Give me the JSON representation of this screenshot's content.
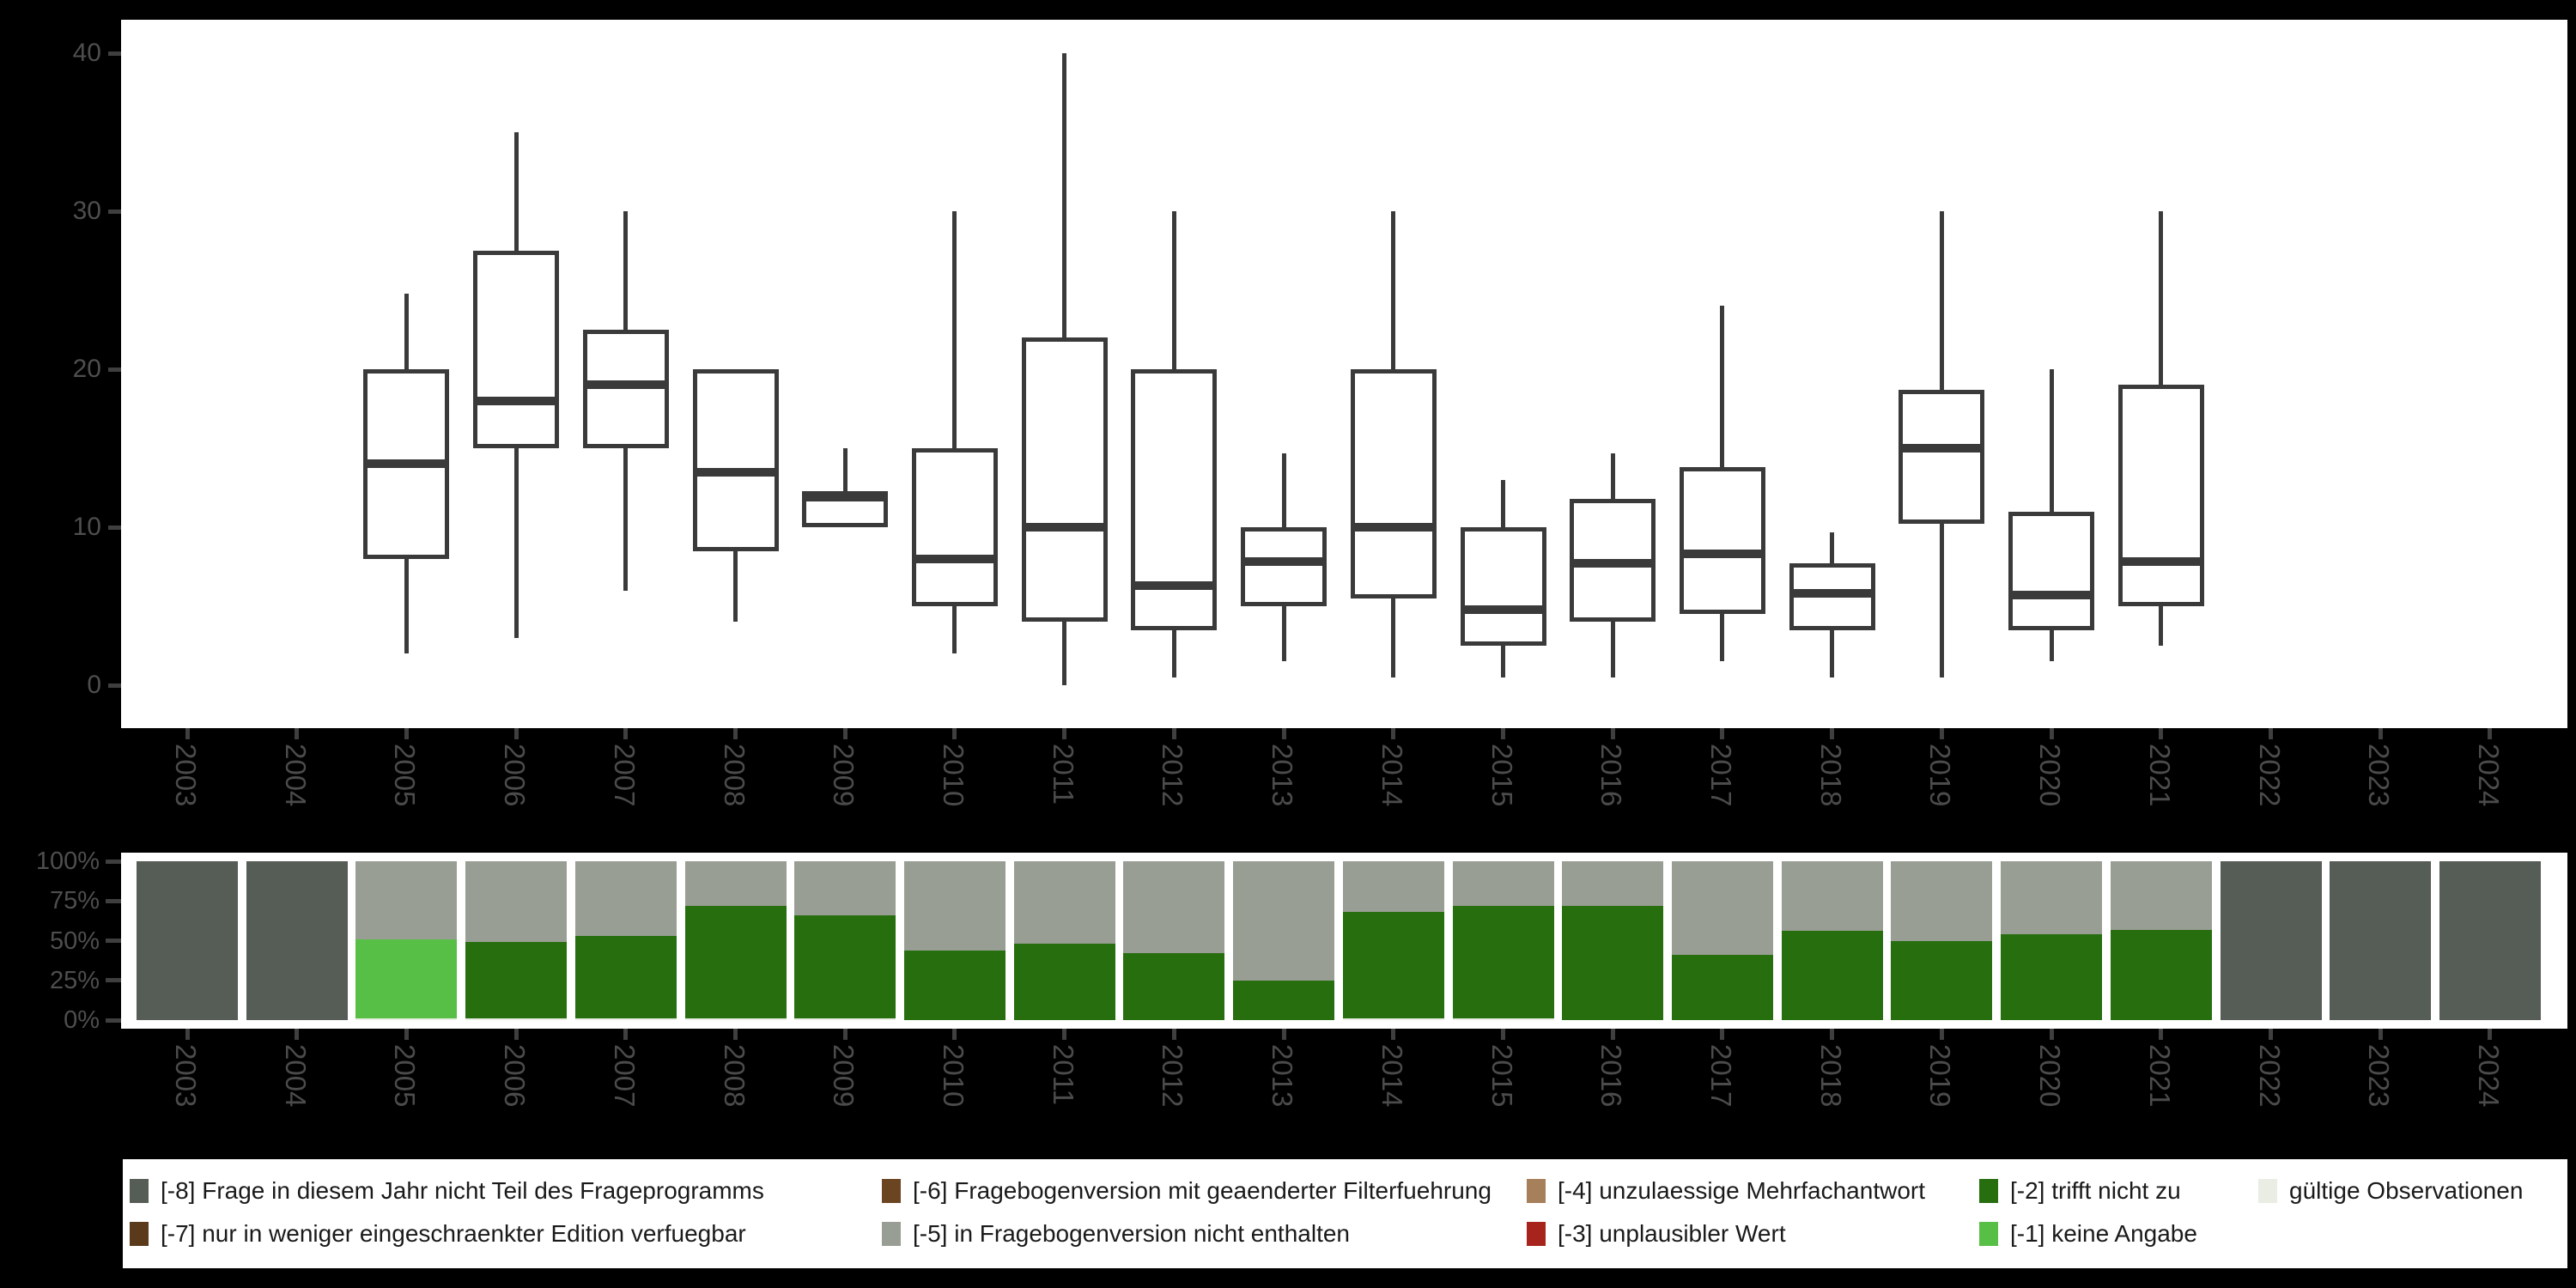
{
  "colors": {
    "background": "#000000",
    "panel": "#ffffff",
    "box_stroke": "#3a3a3a",
    "axis_text": "#4e4e4e",
    "year_text": "#4b4b4b",
    "tick": "#3f3f3f",
    "legend_text": "#1a1a1a",
    "na_program": "#565c56",
    "not_in_version": "#999e94",
    "trifft_nicht_zu": "#276e0f",
    "keine_angabe": "#57bf45",
    "valid": "#e9ede3",
    "edition": "#5a3a1b",
    "filter": "#6b4522",
    "mehrfach": "#a5805a",
    "unplausibel": "#a6241c"
  },
  "chart_data": [
    {
      "type": "boxplot",
      "title": "",
      "xlabel": "",
      "ylabel": "",
      "categories": [
        "2003",
        "2004",
        "2005",
        "2006",
        "2007",
        "2008",
        "2009",
        "2010",
        "2011",
        "2012",
        "2013",
        "2014",
        "2015",
        "2016",
        "2017",
        "2018",
        "2019",
        "2020",
        "2021",
        "2022",
        "2023",
        "2024"
      ],
      "yticks": [
        0,
        10,
        20,
        30,
        40
      ],
      "ylim": [
        0,
        42
      ],
      "grid": false,
      "boxes": [
        {
          "year": "2005",
          "low": 2,
          "q1": 8,
          "median": 14,
          "q3": 20,
          "high": 24.8
        },
        {
          "year": "2006",
          "low": 3,
          "q1": 15,
          "median": 18,
          "q3": 27.5,
          "high": 35
        },
        {
          "year": "2007",
          "low": 6,
          "q1": 15,
          "median": 19,
          "q3": 22.5,
          "high": 30
        },
        {
          "year": "2008",
          "low": 4,
          "q1": 8.5,
          "median": 13.5,
          "q3": 20,
          "high": 20
        },
        {
          "year": "2009",
          "low": 10,
          "q1": 10,
          "median": 11.9,
          "q3": 12.3,
          "high": 15
        },
        {
          "year": "2010",
          "low": 2,
          "q1": 5,
          "median": 8,
          "q3": 15,
          "high": 30
        },
        {
          "year": "2011",
          "low": 0,
          "q1": 4,
          "median": 10,
          "q3": 22,
          "high": 40
        },
        {
          "year": "2012",
          "low": 0.5,
          "q1": 3.5,
          "median": 6.3,
          "q3": 20,
          "high": 30
        },
        {
          "year": "2013",
          "low": 1.5,
          "q1": 5,
          "median": 7.8,
          "q3": 10,
          "high": 14.7
        },
        {
          "year": "2014",
          "low": 0.5,
          "q1": 5.5,
          "median": 10,
          "q3": 20,
          "high": 30
        },
        {
          "year": "2015",
          "low": 0.5,
          "q1": 2.5,
          "median": 4.8,
          "q3": 10,
          "high": 13
        },
        {
          "year": "2016",
          "low": 0.5,
          "q1": 4,
          "median": 7.7,
          "q3": 11.8,
          "high": 14.7
        },
        {
          "year": "2017",
          "low": 1.5,
          "q1": 4.5,
          "median": 8.3,
          "q3": 13.8,
          "high": 24
        },
        {
          "year": "2018",
          "low": 0.5,
          "q1": 3.5,
          "median": 5.8,
          "q3": 7.7,
          "high": 9.7
        },
        {
          "year": "2019",
          "low": 0.5,
          "q1": 10.2,
          "median": 15,
          "q3": 18.7,
          "high": 30
        },
        {
          "year": "2020",
          "low": 1.5,
          "q1": 3.5,
          "median": 5.7,
          "q3": 11,
          "high": 20
        },
        {
          "year": "2021",
          "low": 2.5,
          "q1": 5,
          "median": 7.8,
          "q3": 19,
          "high": 30
        }
      ]
    },
    {
      "type": "bar",
      "subtype": "stacked-percent",
      "title": "",
      "xlabel": "",
      "ylabel": "",
      "categories": [
        "2003",
        "2004",
        "2005",
        "2006",
        "2007",
        "2008",
        "2009",
        "2010",
        "2011",
        "2012",
        "2013",
        "2014",
        "2015",
        "2016",
        "2017",
        "2018",
        "2019",
        "2020",
        "2021",
        "2022",
        "2023",
        "2024"
      ],
      "yticks": [
        "100%",
        "75%",
        "50%",
        "25%",
        "0%"
      ],
      "ylim": [
        0,
        100
      ],
      "grid": false,
      "bars": [
        {
          "year": "2003",
          "segments": [
            {
              "key": "na_program",
              "pct": 100
            }
          ]
        },
        {
          "year": "2004",
          "segments": [
            {
              "key": "na_program",
              "pct": 100
            }
          ]
        },
        {
          "year": "2005",
          "segments": [
            {
              "key": "valid",
              "pct": 1
            },
            {
              "key": "keine_angabe",
              "pct": 50
            },
            {
              "key": "not_in_version",
              "pct": 49
            }
          ]
        },
        {
          "year": "2006",
          "segments": [
            {
              "key": "valid",
              "pct": 1
            },
            {
              "key": "trifft_nicht_zu",
              "pct": 48
            },
            {
              "key": "not_in_version",
              "pct": 51
            }
          ]
        },
        {
          "year": "2007",
          "segments": [
            {
              "key": "valid",
              "pct": 1
            },
            {
              "key": "trifft_nicht_zu",
              "pct": 52
            },
            {
              "key": "not_in_version",
              "pct": 47
            }
          ]
        },
        {
          "year": "2008",
          "segments": [
            {
              "key": "valid",
              "pct": 1
            },
            {
              "key": "trifft_nicht_zu",
              "pct": 71
            },
            {
              "key": "not_in_version",
              "pct": 28
            }
          ]
        },
        {
          "year": "2009",
          "segments": [
            {
              "key": "valid",
              "pct": 1
            },
            {
              "key": "trifft_nicht_zu",
              "pct": 65
            },
            {
              "key": "not_in_version",
              "pct": 34
            }
          ]
        },
        {
          "year": "2010",
          "segments": [
            {
              "key": "trifft_nicht_zu",
              "pct": 44
            },
            {
              "key": "not_in_version",
              "pct": 56
            }
          ]
        },
        {
          "year": "2011",
          "segments": [
            {
              "key": "trifft_nicht_zu",
              "pct": 48
            },
            {
              "key": "not_in_version",
              "pct": 52
            }
          ]
        },
        {
          "year": "2012",
          "segments": [
            {
              "key": "trifft_nicht_zu",
              "pct": 42
            },
            {
              "key": "not_in_version",
              "pct": 58
            }
          ]
        },
        {
          "year": "2013",
          "segments": [
            {
              "key": "trifft_nicht_zu",
              "pct": 25
            },
            {
              "key": "not_in_version",
              "pct": 75
            }
          ]
        },
        {
          "year": "2014",
          "segments": [
            {
              "key": "valid",
              "pct": 1
            },
            {
              "key": "trifft_nicht_zu",
              "pct": 67
            },
            {
              "key": "not_in_version",
              "pct": 32
            }
          ]
        },
        {
          "year": "2015",
          "segments": [
            {
              "key": "valid",
              "pct": 1
            },
            {
              "key": "trifft_nicht_zu",
              "pct": 71
            },
            {
              "key": "not_in_version",
              "pct": 28
            }
          ]
        },
        {
          "year": "2016",
          "segments": [
            {
              "key": "trifft_nicht_zu",
              "pct": 72
            },
            {
              "key": "not_in_version",
              "pct": 28
            }
          ]
        },
        {
          "year": "2017",
          "segments": [
            {
              "key": "trifft_nicht_zu",
              "pct": 41
            },
            {
              "key": "not_in_version",
              "pct": 59
            }
          ]
        },
        {
          "year": "2018",
          "segments": [
            {
              "key": "trifft_nicht_zu",
              "pct": 56
            },
            {
              "key": "not_in_version",
              "pct": 44
            }
          ]
        },
        {
          "year": "2019",
          "segments": [
            {
              "key": "trifft_nicht_zu",
              "pct": 50
            },
            {
              "key": "not_in_version",
              "pct": 50
            }
          ]
        },
        {
          "year": "2020",
          "segments": [
            {
              "key": "trifft_nicht_zu",
              "pct": 54
            },
            {
              "key": "not_in_version",
              "pct": 46
            }
          ]
        },
        {
          "year": "2021",
          "segments": [
            {
              "key": "trifft_nicht_zu",
              "pct": 57
            },
            {
              "key": "not_in_version",
              "pct": 43
            }
          ]
        },
        {
          "year": "2022",
          "segments": [
            {
              "key": "na_program",
              "pct": 100
            }
          ]
        },
        {
          "year": "2023",
          "segments": [
            {
              "key": "na_program",
              "pct": 100
            }
          ]
        },
        {
          "year": "2024",
          "segments": [
            {
              "key": "na_program",
              "pct": 100
            }
          ]
        }
      ]
    }
  ],
  "legend": {
    "position": "bottom",
    "items": [
      {
        "row": 0,
        "col": 0,
        "key": "na_program",
        "label": "[-8] Frage in diesem Jahr nicht Teil des Frageprogramms"
      },
      {
        "row": 1,
        "col": 0,
        "key": "edition",
        "label": "[-7] nur in weniger eingeschraenkter Edition verfuegbar"
      },
      {
        "row": 0,
        "col": 1,
        "key": "filter",
        "label": "[-6] Fragebogenversion mit geaenderter Filterfuehrung"
      },
      {
        "row": 1,
        "col": 1,
        "key": "not_in_version",
        "label": "[-5] in Fragebogenversion nicht enthalten"
      },
      {
        "row": 0,
        "col": 2,
        "key": "mehrfach",
        "label": "[-4] unzulaessige Mehrfachantwort"
      },
      {
        "row": 1,
        "col": 2,
        "key": "unplausibel",
        "label": "[-3] unplausibler Wert"
      },
      {
        "row": 0,
        "col": 3,
        "key": "trifft_nicht_zu",
        "label": "[-2] trifft nicht zu"
      },
      {
        "row": 1,
        "col": 3,
        "key": "keine_angabe",
        "label": "[-1] keine Angabe"
      },
      {
        "row": 0,
        "col": 4,
        "key": "valid",
        "label": "gültige Observationen"
      }
    ]
  }
}
